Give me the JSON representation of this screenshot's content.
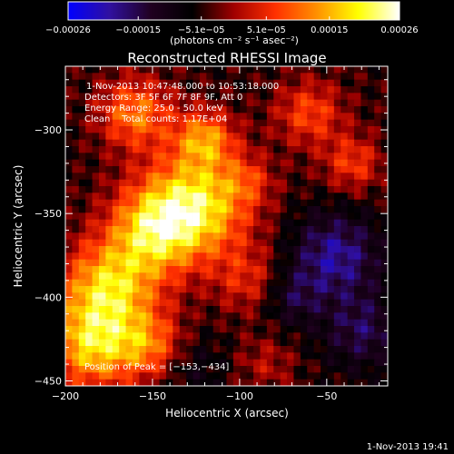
{
  "chart_data": {
    "type": "heatmap",
    "title": "Reconstructed RHESSI Image",
    "xlabel": "Heliocentric X (arcsec)",
    "ylabel": "Heliocentric Y (arcsec)",
    "xlim": [
      -200,
      -15
    ],
    "ylim": [
      -453,
      -262
    ],
    "x_ticks": [
      -200,
      -150,
      -100,
      -50
    ],
    "y_ticks": [
      -300,
      -350,
      -400,
      -450
    ],
    "x_tick_labels": [
      "−200",
      "−150",
      "−100",
      "−50"
    ],
    "y_tick_labels": [
      "−300",
      "−350",
      "−400",
      "−450"
    ],
    "colorbar": {
      "min": -0.00026,
      "max": 0.00026,
      "ticks": [
        -0.00026,
        -0.00015,
        -5.1e-05,
        5.1e-05,
        0.00015,
        0.00026
      ],
      "tick_labels": [
        "−0.00026",
        "−0.00015",
        "−5.1e−05",
        "5.1e−05",
        "0.00015",
        "0.00026"
      ],
      "unit_label": "(photons cm⁻² s⁻¹ asec⁻²)",
      "colors": [
        "#0000ff",
        "#3010a0",
        "#200020",
        "#000000",
        "#a00000",
        "#ff3000",
        "#ff9000",
        "#ffff00",
        "#ffffff"
      ]
    },
    "annotations": [
      "1-Nov-2013 10:47:48.000 to 10:53:18.000",
      "Detectors: 3F 5F 6F 7F 8F 9F, Att 0",
      "Energy Range: 25.0 - 50.0 keV",
      "Clean    Total counts: 1.17E+04"
    ],
    "peak_label": "Position of Peak = [−153,−434]",
    "peak": [
      -153,
      -434
    ],
    "grid": false,
    "hotspots": [
      {
        "x": -125,
        "y": -345,
        "sigma": 22,
        "amp": 0.00024
      },
      {
        "x": -150,
        "y": -360,
        "sigma": 18,
        "amp": 0.00018
      },
      {
        "x": -175,
        "y": -395,
        "sigma": 20,
        "amp": 0.00022
      },
      {
        "x": -185,
        "y": -430,
        "sigma": 18,
        "amp": 0.0002
      },
      {
        "x": -150,
        "y": -430,
        "sigma": 14,
        "amp": 0.00014
      },
      {
        "x": -120,
        "y": -305,
        "sigma": 12,
        "amp": 0.00016
      },
      {
        "x": -160,
        "y": -290,
        "sigma": 15,
        "amp": 0.00016
      },
      {
        "x": -60,
        "y": -290,
        "sigma": 14,
        "amp": 0.00012
      },
      {
        "x": -35,
        "y": -320,
        "sigma": 12,
        "amp": 0.00011
      },
      {
        "x": -95,
        "y": -390,
        "sigma": 14,
        "amp": 9e-05
      },
      {
        "x": -95,
        "y": -330,
        "sigma": 10,
        "amp": 7e-05
      },
      {
        "x": -45,
        "y": -375,
        "sigma": 18,
        "amp": -0.00014
      },
      {
        "x": -70,
        "y": -400,
        "sigma": 12,
        "amp": -8e-05
      },
      {
        "x": -30,
        "y": -420,
        "sigma": 16,
        "amp": -0.0001
      },
      {
        "x": -130,
        "y": -440,
        "sigma": 14,
        "amp": -6e-05
      },
      {
        "x": -85,
        "y": -440,
        "sigma": 12,
        "amp": 6e-05
      }
    ]
  },
  "footer": {
    "timestamp": "1-Nov-2013 19:41"
  }
}
